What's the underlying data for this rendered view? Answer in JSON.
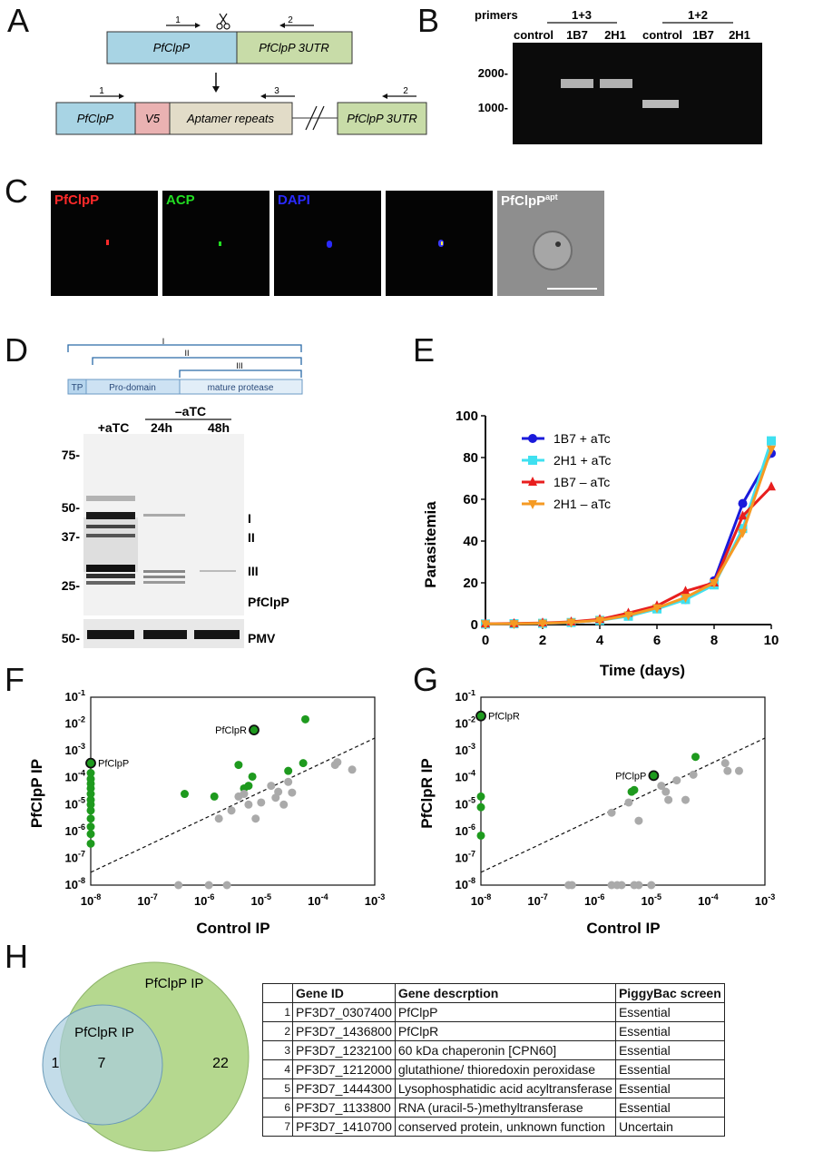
{
  "panel_letters": [
    "A",
    "B",
    "C",
    "D",
    "E",
    "F",
    "G",
    "H"
  ],
  "panelA": {
    "top_construct": [
      "PfClpP",
      "PfClpP 3UTR"
    ],
    "bottom_construct": [
      "PfClpP",
      "V5",
      "Aptamer repeats",
      "PfClpP 3UTR"
    ],
    "primer_labels": [
      "1",
      "2",
      "1",
      "3",
      "2"
    ]
  },
  "panelB": {
    "primers_label": "primers",
    "groups": [
      "1+3",
      "1+2"
    ],
    "lanes": [
      "control",
      "1B7",
      "2H1",
      "control",
      "1B7",
      "2H1"
    ],
    "markers": [
      "2000-",
      "1000-"
    ]
  },
  "panelC": {
    "channels": [
      "PfClpP",
      "ACP",
      "DAPI",
      "",
      "PfClpP"
    ],
    "superscript": "apt",
    "colors": [
      "#ff2a2a",
      "#22dd22",
      "#2a2aff",
      "#ffffff",
      "#ffffff"
    ]
  },
  "panelD": {
    "brackets": [
      "I",
      "II",
      "III"
    ],
    "domains": [
      "TP",
      "Pro-domain",
      "mature protease"
    ],
    "conditions": [
      "+aTC",
      "–aTC",
      "24h",
      "48h"
    ],
    "mw_markers": [
      "75-",
      "50-",
      "37-",
      "25-",
      "50-"
    ],
    "band_labels": [
      "I",
      "II",
      "III",
      "PfClpP",
      "PMV"
    ]
  },
  "chart_data": [
    {
      "type": "line",
      "panel": "E",
      "xlabel": "Time (days)",
      "ylabel": "Parasitemia",
      "xlim": [
        0,
        10
      ],
      "ylim": [
        0,
        100
      ],
      "xticks": [
        0,
        2,
        4,
        6,
        8,
        10
      ],
      "yticks": [
        0,
        20,
        40,
        60,
        80,
        100
      ],
      "legend_position": "top-left",
      "series": [
        {
          "name": "1B7 + aTc",
          "color": "#1a1adb",
          "marker": "circle",
          "x": [
            0,
            1,
            2,
            3,
            4,
            5,
            6,
            7,
            8,
            9,
            10
          ],
          "y": [
            0.3,
            0.4,
            0.6,
            1,
            2,
            4.5,
            8,
            12,
            21,
            58,
            82
          ]
        },
        {
          "name": "2H1 + aTc",
          "color": "#3fe0f0",
          "marker": "square",
          "x": [
            0,
            1,
            2,
            3,
            4,
            5,
            6,
            7,
            8,
            9,
            10
          ],
          "y": [
            0.3,
            0.4,
            0.6,
            1,
            2,
            4,
            7.5,
            12,
            19,
            46,
            88
          ]
        },
        {
          "name": "1B7 – aTc",
          "color": "#e81e1e",
          "marker": "triangle-up",
          "x": [
            0,
            1,
            2,
            3,
            4,
            5,
            6,
            7,
            8,
            9,
            10
          ],
          "y": [
            0.4,
            0.5,
            0.8,
            1.3,
            2.5,
            5.5,
            9,
            16,
            20,
            52,
            66
          ]
        },
        {
          "name": "2H1 – aTc",
          "color": "#f59a23",
          "marker": "triangle-down",
          "x": [
            0,
            1,
            2,
            3,
            4,
            5,
            6,
            7,
            8,
            9,
            10
          ],
          "y": [
            0.3,
            0.4,
            0.6,
            1.1,
            2,
            4.5,
            8,
            13,
            20,
            44,
            84
          ]
        }
      ]
    },
    {
      "type": "scatter",
      "panel": "F",
      "xlabel": "Control IP",
      "ylabel": "PfClpP IP",
      "xscale": "log",
      "yscale": "log",
      "xlim": [
        1e-08,
        0.001
      ],
      "ylim": [
        1e-08,
        0.1
      ],
      "xticks": [
        "10-8",
        "10-7",
        "10-6",
        "10-5",
        "10-4",
        "10-3"
      ],
      "yticks": [
        "10-1",
        "10-2",
        "10-3",
        "10-4",
        "10-5",
        "10-6",
        "10-7",
        "10-8"
      ],
      "annotations": [
        "PfClpP",
        "PfClpR"
      ],
      "diagonal": {
        "from": [
          1e-08,
          3e-08
        ],
        "to": [
          0.001,
          0.003
        ]
      },
      "series": [
        {
          "color": "#1e9a1e",
          "points": [
            [
              1e-08,
              0.00035
            ],
            [
              1e-08,
              0.00015
            ],
            [
              1e-08,
              9e-05
            ],
            [
              1e-08,
              6e-05
            ],
            [
              1e-08,
              4e-05
            ],
            [
              1e-08,
              2.5e-05
            ],
            [
              1e-08,
              1.5e-05
            ],
            [
              1e-08,
              1e-05
            ],
            [
              1e-08,
              6e-06
            ],
            [
              1e-08,
              3e-06
            ],
            [
              1e-08,
              1.5e-06
            ],
            [
              1e-08,
              8e-07
            ],
            [
              1e-08,
              3.5e-07
            ],
            [
              4.5e-07,
              2.5e-05
            ],
            [
              1.5e-06,
              2e-05
            ],
            [
              4e-06,
              0.0003
            ],
            [
              5e-06,
              4e-05
            ],
            [
              6e-06,
              5e-05
            ],
            [
              7e-06,
              0.00011
            ],
            [
              3e-05,
              0.00018
            ],
            [
              5.5e-05,
              0.00035
            ],
            [
              6e-05,
              0.015
            ]
          ]
        },
        {
          "color": "#aaaaaa",
          "points": [
            [
              3.5e-07,
              1e-08
            ],
            [
              1.2e-06,
              1e-08
            ],
            [
              2.5e-06,
              1e-08
            ],
            [
              1.8e-06,
              3e-06
            ],
            [
              3e-06,
              6e-06
            ],
            [
              4e-06,
              2e-05
            ],
            [
              5e-06,
              2.5e-05
            ],
            [
              6e-06,
              1e-05
            ],
            [
              8e-06,
              3e-06
            ],
            [
              1e-05,
              1.2e-05
            ],
            [
              1.5e-05,
              5e-05
            ],
            [
              1.8e-05,
              1.8e-05
            ],
            [
              2e-05,
              3e-05
            ],
            [
              2.5e-05,
              1e-05
            ],
            [
              3e-05,
              7e-05
            ],
            [
              3.5e-05,
              2.8e-05
            ],
            [
              0.0002,
              0.0003
            ],
            [
              0.00022,
              0.00038
            ],
            [
              0.0004,
              0.0002
            ]
          ]
        },
        {
          "color": "#1e9a1e",
          "outlined": true,
          "points": [
            [
              1e-08,
              0.00035
            ],
            [
              7.5e-06,
              0.006
            ]
          ]
        }
      ]
    },
    {
      "type": "scatter",
      "panel": "G",
      "xlabel": "Control IP",
      "ylabel": "PfClpR IP",
      "xscale": "log",
      "yscale": "log",
      "xlim": [
        1e-08,
        0.001
      ],
      "ylim": [
        1e-08,
        0.1
      ],
      "xticks": [
        "10-8",
        "10-7",
        "10-6",
        "10-5",
        "10-4",
        "10-3"
      ],
      "yticks": [
        "10-1",
        "10-2",
        "10-3",
        "10-4",
        "10-5",
        "10-6",
        "10-7",
        "10-8"
      ],
      "annotations": [
        "PfClpR",
        "PfClpP"
      ],
      "diagonal": {
        "from": [
          1e-08,
          3e-08
        ],
        "to": [
          0.001,
          0.003
        ]
      },
      "series": [
        {
          "color": "#1e9a1e",
          "points": [
            [
              1e-08,
              2e-05
            ],
            [
              1e-08,
              8e-06
            ],
            [
              1e-08,
              7e-07
            ],
            [
              4.5e-06,
              3e-05
            ],
            [
              5e-06,
              3.5e-05
            ],
            [
              6e-05,
              0.0006
            ]
          ]
        },
        {
          "color": "#aaaaaa",
          "points": [
            [
              3.5e-07,
              1e-08
            ],
            [
              4e-07,
              1e-08
            ],
            [
              2e-06,
              1e-08
            ],
            [
              2.5e-06,
              1e-08
            ],
            [
              3e-06,
              1e-08
            ],
            [
              5e-06,
              1e-08
            ],
            [
              6e-06,
              1e-08
            ],
            [
              1e-05,
              1e-08
            ],
            [
              4e-06,
              1.2e-05
            ],
            [
              2e-06,
              5e-06
            ],
            [
              6e-06,
              2.5e-06
            ],
            [
              1.5e-05,
              5e-05
            ],
            [
              1.8e-05,
              3e-05
            ],
            [
              2e-05,
              1.5e-05
            ],
            [
              2.8e-05,
              8e-05
            ],
            [
              4e-05,
              1.5e-05
            ],
            [
              5.5e-05,
              0.00013
            ],
            [
              0.0002,
              0.00035
            ],
            [
              0.00022,
              0.00018
            ],
            [
              0.00035,
              0.00018
            ]
          ]
        },
        {
          "color": "#1e9a1e",
          "outlined": true,
          "points": [
            [
              1e-08,
              0.02
            ],
            [
              1.1e-05,
              0.00012
            ]
          ]
        }
      ]
    }
  ],
  "panelH": {
    "venn": {
      "outer_label": "PfClpP IP",
      "inner_label": "PfClpR IP",
      "counts": [
        "1",
        "7",
        "22"
      ],
      "outer_color": "#b5d88f",
      "inner_color": "#a9cde0"
    },
    "table": {
      "headers": [
        "",
        "Gene ID",
        "Gene descrption",
        "PiggyBac screen"
      ],
      "rows": [
        [
          "1",
          "PF3D7_0307400",
          "PfClpP",
          "Essential"
        ],
        [
          "2",
          "PF3D7_1436800",
          "PfClpR",
          "Essential"
        ],
        [
          "3",
          "PF3D7_1232100",
          "60 kDa chaperonin [CPN60]",
          "Essential"
        ],
        [
          "4",
          "PF3D7_1212000",
          "glutathione/ thioredoxin peroxidase",
          "Essential"
        ],
        [
          "5",
          "PF3D7_1444300",
          "Lysophosphatidic acid acyltransferase",
          "Essential"
        ],
        [
          "6",
          "PF3D7_1133800",
          "RNA (uracil-5-)methyltransferase",
          "Essential"
        ],
        [
          "7",
          "PF3D7_1410700",
          "conserved protein, unknown function",
          "Uncertain"
        ]
      ]
    }
  }
}
